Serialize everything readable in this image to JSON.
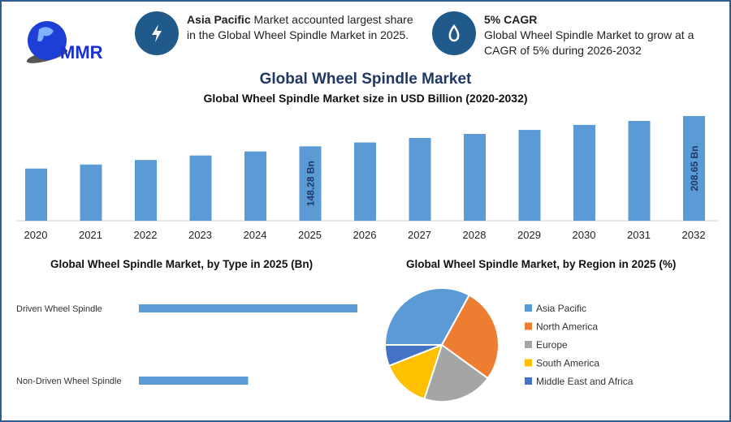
{
  "logo": {
    "text": "MMR"
  },
  "info1": {
    "bold": "Asia Pacific",
    "text": " Market accounted largest share in the Global Wheel Spindle Market in 2025.",
    "icon": "lightning-icon"
  },
  "info2": {
    "bold": "5% CAGR",
    "text": "Global Wheel Spindle Market to grow at a CAGR of 5% during 2026-2032",
    "icon": "drop-icon"
  },
  "main_title": "Global Wheel Spindle Market",
  "chart_data": [
    {
      "type": "bar",
      "title": "Global Wheel Spindle Market size in USD Billion (2020-2032)",
      "categories": [
        "2020",
        "2021",
        "2022",
        "2023",
        "2024",
        "2025",
        "2026",
        "2027",
        "2028",
        "2029",
        "2030",
        "2031",
        "2032"
      ],
      "values": [
        104,
        112,
        121,
        130,
        138,
        148.28,
        156,
        165,
        173,
        181,
        191,
        199,
        208.65
      ],
      "data_labels": {
        "2025": "148.28 Bn",
        "2032": "208.65 Bn"
      },
      "color": "#5b9bd5",
      "ylim": [
        0,
        210
      ]
    },
    {
      "type": "bar",
      "orientation": "horizontal",
      "title": "Global Wheel Spindle Market, by Type in 2025 (Bn)",
      "categories": [
        "Driven Wheel Spindle",
        "Non-Driven Wheel Spindle"
      ],
      "values": [
        100,
        50
      ],
      "color": "#5b9bd5"
    },
    {
      "type": "pie",
      "title": "Global Wheel Spindle Market, by Region in 2025 (%)",
      "categories": [
        "Asia Pacific",
        "North America",
        "Europe",
        "South America",
        "Middle East and Africa"
      ],
      "values": [
        33,
        27,
        20,
        14,
        6
      ],
      "colors": [
        "#5b9bd5",
        "#ed7d31",
        "#a5a5a5",
        "#ffc000",
        "#4472c4"
      ],
      "legend": "right"
    }
  ]
}
